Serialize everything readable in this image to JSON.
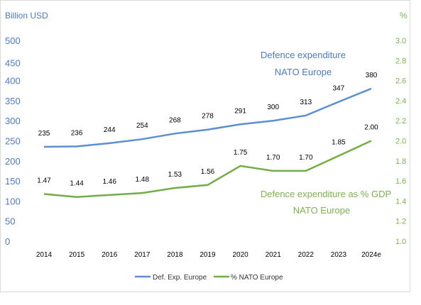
{
  "chart_data": {
    "type": "line",
    "x": [
      "2014",
      "2015",
      "2016",
      "2017",
      "2018",
      "2019",
      "2020",
      "2021",
      "2022",
      "2023",
      "2024e"
    ],
    "ylabel_left": "Billion USD",
    "ylabel_right": "%",
    "yticks_left": [
      "0",
      "50",
      "100",
      "150",
      "200",
      "250",
      "300",
      "350",
      "400",
      "450",
      "500"
    ],
    "yticks_right": [
      "1.0",
      "1.2",
      "1.4",
      "1.6",
      "1.8",
      "2.0",
      "2.2",
      "2.4",
      "2.6",
      "2.8",
      "3.0"
    ],
    "ylim_left": [
      0,
      500
    ],
    "ylim_right": [
      1.0,
      3.0
    ],
    "grid": false,
    "legend_position": "bottom",
    "series": [
      {
        "name": "Def. Exp. Europe",
        "axis": "left",
        "color": "#5b8fd1",
        "values": [
          235,
          236,
          244,
          254,
          268,
          278,
          291,
          300,
          313,
          347,
          380
        ],
        "labels": [
          "235",
          "236",
          "244",
          "254",
          "268",
          "278",
          "291",
          "300",
          "313",
          "347",
          "380"
        ]
      },
      {
        "name": "% NATO Europe",
        "axis": "right",
        "color": "#72ad46",
        "values": [
          1.47,
          1.44,
          1.46,
          1.48,
          1.53,
          1.56,
          1.75,
          1.7,
          1.7,
          1.85,
          2.0
        ],
        "labels": [
          "1.47",
          "1.44",
          "1.46",
          "1.48",
          "1.53",
          "1.56",
          "1.75",
          "1.70",
          "1.70",
          "1.85",
          "2.00"
        ]
      }
    ],
    "annotations": {
      "blue_line1": "Defence expenditure",
      "blue_line2": "NATO Europe",
      "green_line1": "Defence expenditure as % GDP",
      "green_line2": "NATO Europe"
    }
  }
}
